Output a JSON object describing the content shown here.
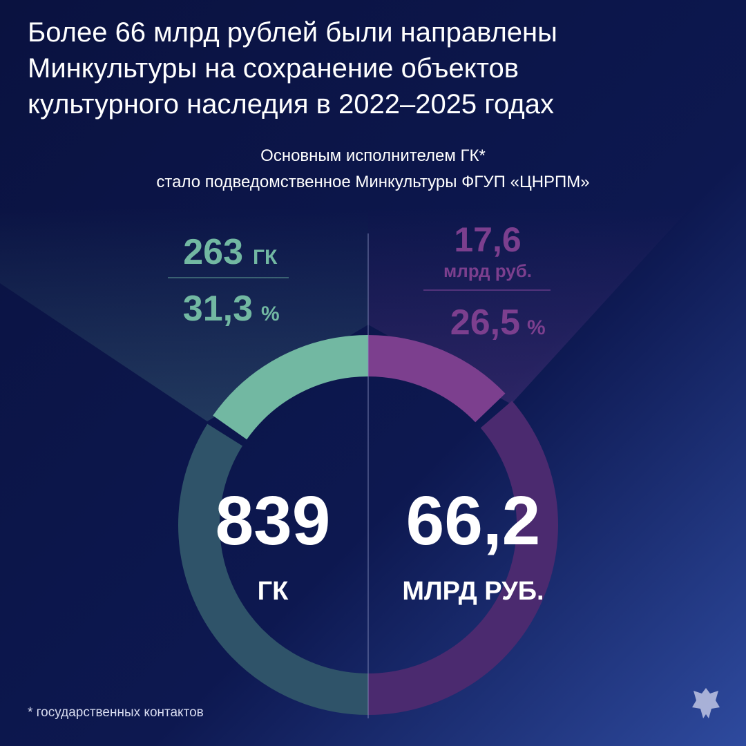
{
  "title": [
    "Более 66 млрд рублей были направлены",
    "Минкультуры на сохранение объектов",
    "культурного наследия в 2022–2025 годах"
  ],
  "subtitle": [
    "Основным исполнителем  ГК*",
    "стало подведомственное Минкультуры ФГУП «ЦНРПМ»"
  ],
  "left": {
    "part": 263,
    "part_unit": "ГК",
    "share": {
      "value": 31.3,
      "label": "31,3"
    },
    "share_unit": "%",
    "total": 839,
    "total_unit": "ГК",
    "color": "#72b8a2",
    "rest_color": "#2f5369"
  },
  "right": {
    "part": {
      "value": 17.6,
      "label": "17,6"
    },
    "part_unit": "млрд руб.",
    "share": {
      "value": 26.5,
      "label": "26,5"
    },
    "share_unit": "%",
    "total": {
      "value": 66.2,
      "label": "66,2"
    },
    "total_unit": "МЛРД РУБ.",
    "color": "#7c3f8e",
    "rest_color": "#4b2a6f"
  },
  "footnote": "* государственных контактов"
}
